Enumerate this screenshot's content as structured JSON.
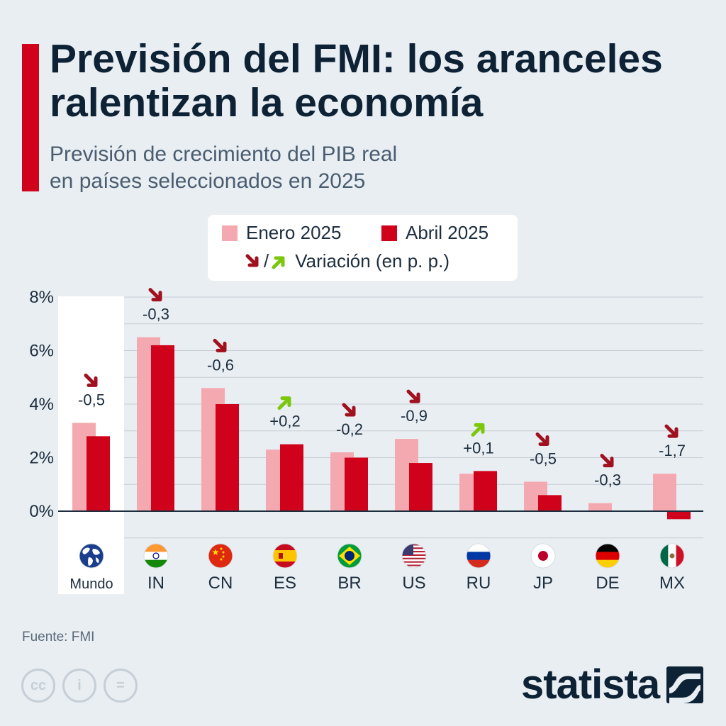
{
  "header": {
    "title": "Previsión del FMI: los aranceles ralentizan la economía",
    "subtitle_line1": "Previsión de crecimiento del PIB real",
    "subtitle_line2": "en países seleccionados en 2025"
  },
  "legend": {
    "series1": "Enero 2025",
    "series2": "Abril 2025",
    "slash": "/",
    "change_label": "Variación (en p. p.)"
  },
  "colors": {
    "enero": "#f4a9b0",
    "abril": "#d0021b",
    "arrow_down": "#a0101e",
    "arrow_up": "#7ac70c",
    "accent": "#d0021b",
    "brand": "#0e2236"
  },
  "chart_data": {
    "type": "bar",
    "categories": [
      "Mundo",
      "IN",
      "CN",
      "ES",
      "BR",
      "US",
      "RU",
      "JP",
      "DE",
      "MX"
    ],
    "series": [
      {
        "name": "Enero 2025",
        "values": [
          3.3,
          6.5,
          4.6,
          2.3,
          2.2,
          2.7,
          1.4,
          1.1,
          0.3,
          1.4
        ]
      },
      {
        "name": "Abril 2025",
        "values": [
          2.8,
          6.2,
          4.0,
          2.5,
          2.0,
          1.8,
          1.5,
          0.6,
          0.0,
          -0.3
        ]
      }
    ],
    "change_labels": [
      "-0,5",
      "-0,3",
      "-0,6",
      "+0,2",
      "-0,2",
      "-0,9",
      "+0,1",
      "-0,5",
      "-0,3",
      "-1,7"
    ],
    "change_direction": [
      "down",
      "down",
      "down",
      "up",
      "down",
      "down",
      "up",
      "down",
      "down",
      "down"
    ],
    "flags": [
      "globe-icon",
      "flag-india-icon",
      "flag-china-icon",
      "flag-spain-icon",
      "flag-brazil-icon",
      "flag-usa-icon",
      "flag-russia-icon",
      "flag-japan-icon",
      "flag-germany-icon",
      "flag-mexico-icon"
    ],
    "yticks": [
      "0%",
      "2%",
      "4%",
      "6%",
      "8%"
    ],
    "ytick_values": [
      0,
      2,
      4,
      6,
      8
    ],
    "ylim": [
      -1,
      8
    ],
    "grid": true
  },
  "footer": {
    "source": "Fuente: FMI",
    "brand": "statista",
    "cc_labels": [
      "cc",
      "i",
      "="
    ]
  }
}
